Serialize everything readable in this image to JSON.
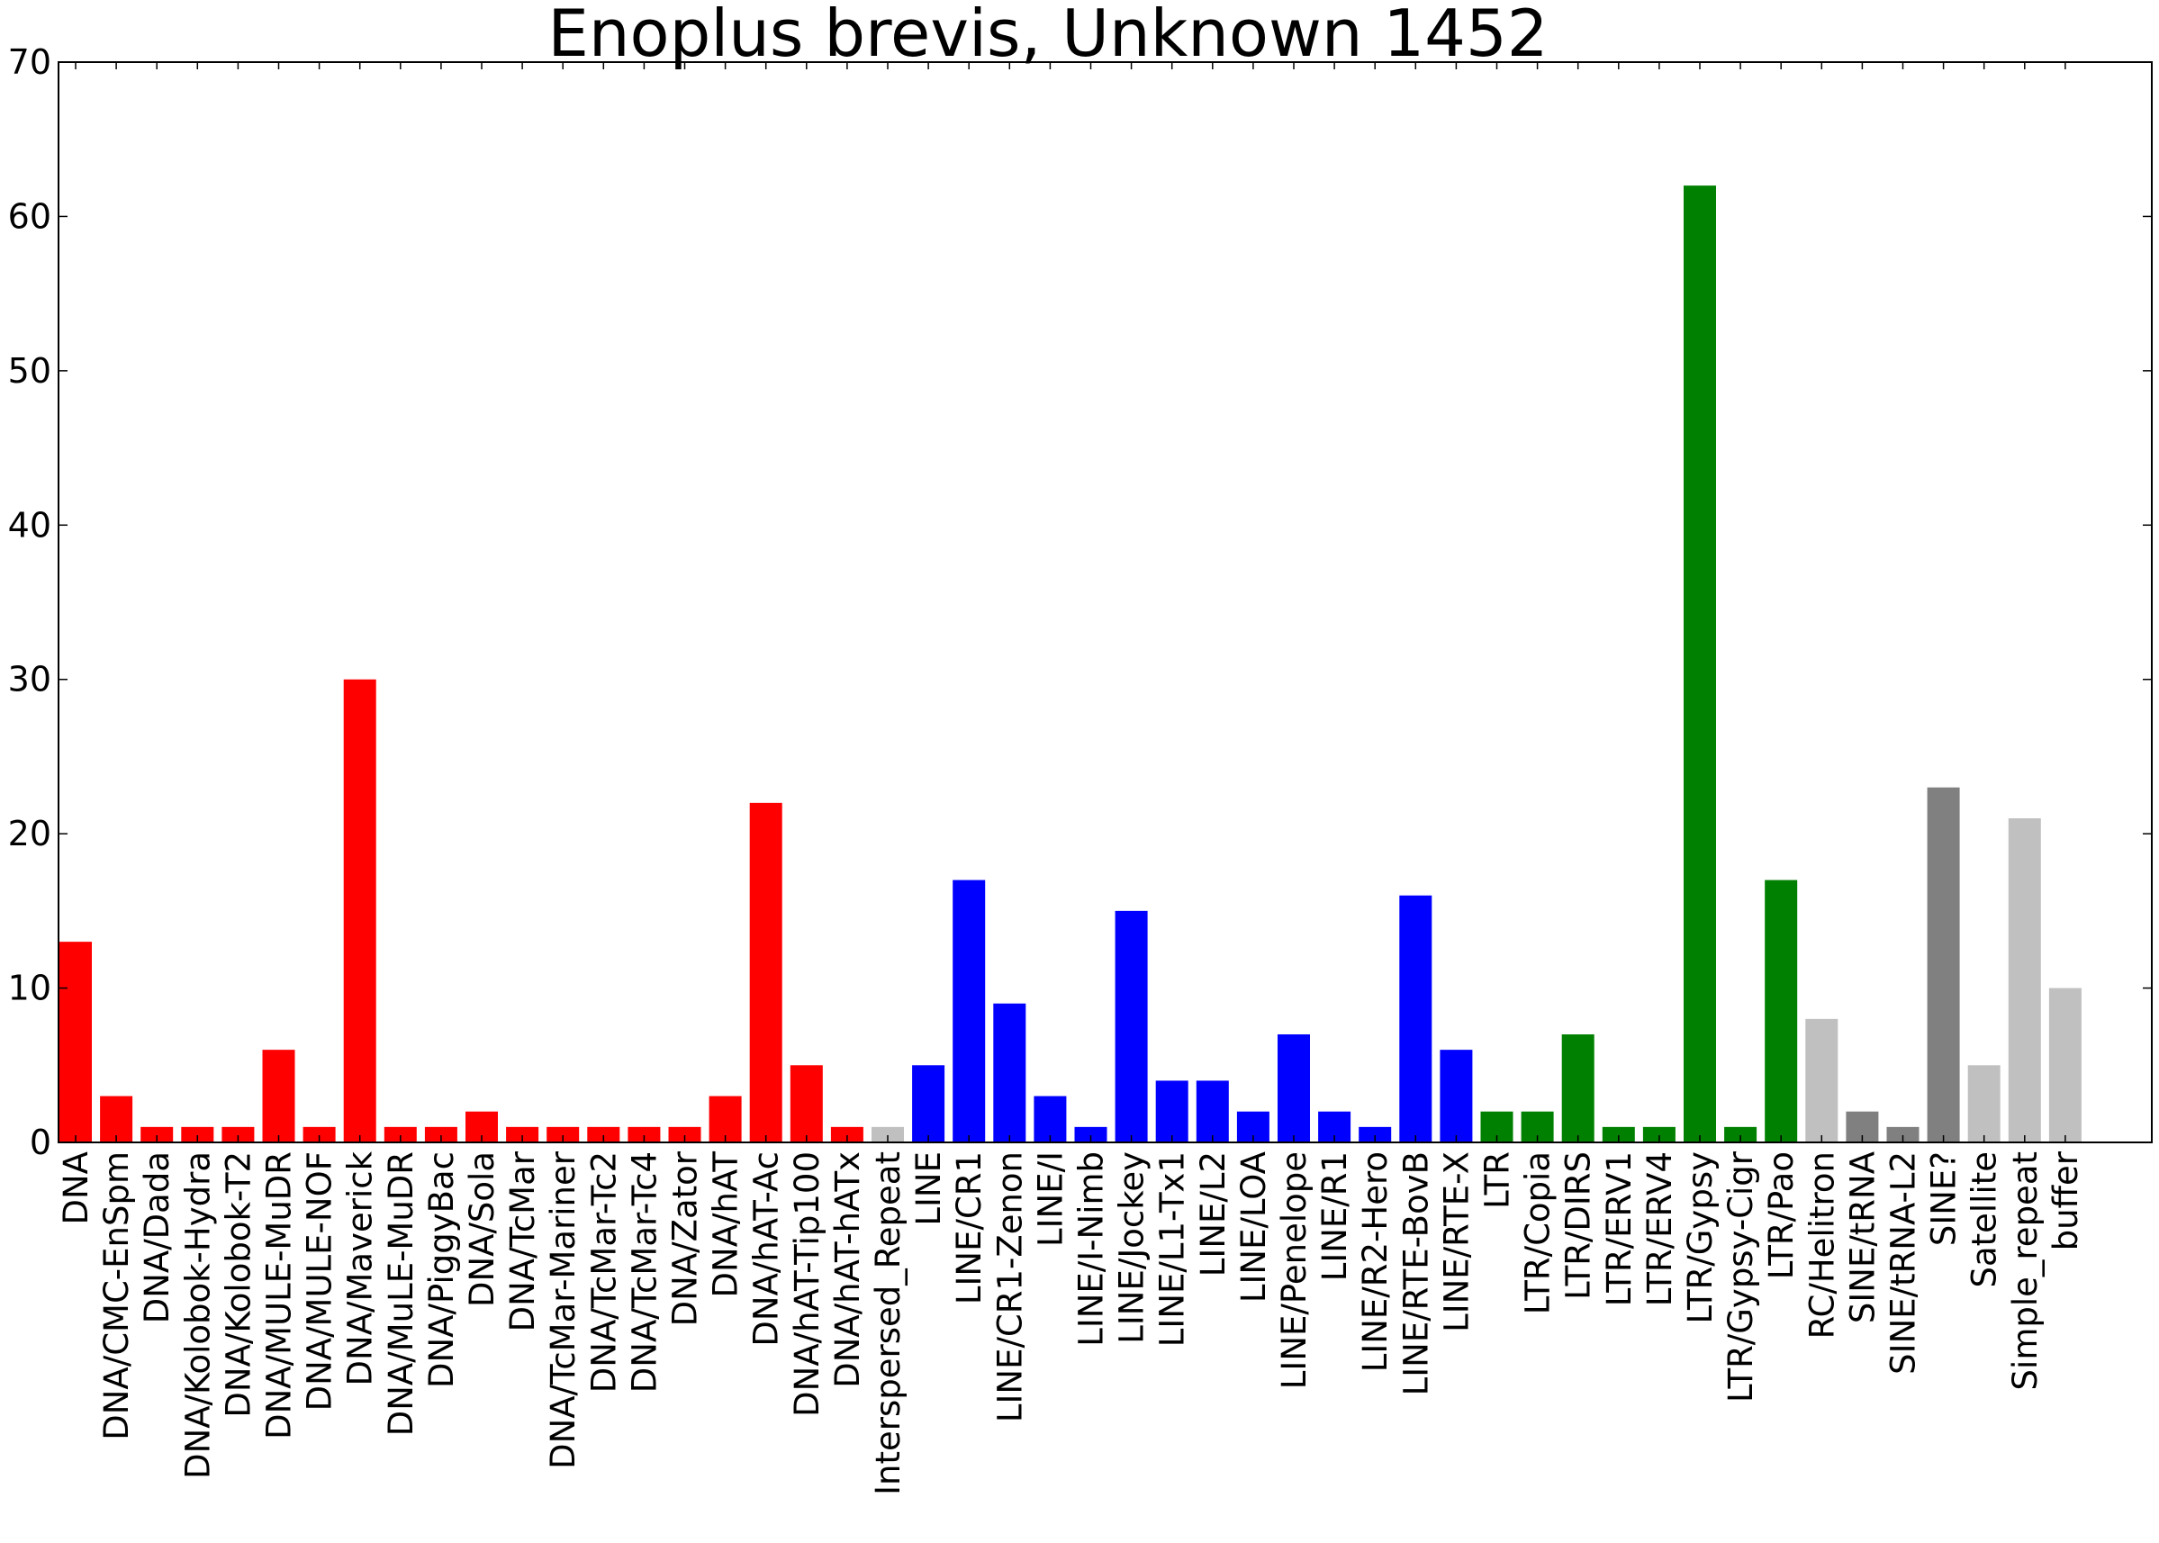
{
  "chart_data": {
    "type": "bar",
    "title": "Enoplus brevis, Unknown 1452",
    "xlabel": "",
    "ylabel": "",
    "ylim": [
      0,
      70
    ],
    "yticks": [
      0,
      10,
      20,
      30,
      40,
      50,
      60,
      70
    ],
    "grid": false,
    "legend": "none",
    "categories": [
      "DNA",
      "DNA/CMC-EnSpm",
      "DNA/Dada",
      "DNA/Kolobok-Hydra",
      "DNA/Kolobok-T2",
      "DNA/MULE-MuDR",
      "DNA/MULE-NOF",
      "DNA/Maverick",
      "DNA/MuLE-MuDR",
      "DNA/PiggyBac",
      "DNA/Sola",
      "DNA/TcMar",
      "DNA/TcMar-Mariner",
      "DNA/TcMar-Tc2",
      "DNA/TcMar-Tc4",
      "DNA/Zator",
      "DNA/hAT",
      "DNA/hAT-Ac",
      "DNA/hAT-Tip100",
      "DNA/hAT-hATx",
      "Interspersed_Repeat",
      "LINE",
      "LINE/CR1",
      "LINE/CR1-Zenon",
      "LINE/I",
      "LINE/I-Nimb",
      "LINE/Jockey",
      "LINE/L1-Tx1",
      "LINE/L2",
      "LINE/LOA",
      "LINE/Penelope",
      "LINE/R1",
      "LINE/R2-Hero",
      "LINE/RTE-BovB",
      "LINE/RTE-X",
      "LTR",
      "LTR/Copia",
      "LTR/DIRS",
      "LTR/ERV1",
      "LTR/ERV4",
      "LTR/Gypsy",
      "LTR/Gypsy-Cigr",
      "LTR/Pao",
      "RC/Helitron",
      "SINE/tRNA",
      "SINE/tRNA-L2",
      "SINE?",
      "Satellite",
      "Simple_repeat",
      "buffer"
    ],
    "values": [
      13,
      3,
      1,
      1,
      1,
      6,
      1,
      30,
      1,
      1,
      2,
      1,
      1,
      1,
      1,
      1,
      3,
      22,
      5,
      1,
      1,
      5,
      17,
      9,
      3,
      1,
      15,
      4,
      4,
      2,
      7,
      2,
      1,
      16,
      6,
      2,
      2,
      7,
      1,
      1,
      62,
      1,
      17,
      8,
      2,
      1,
      23,
      5,
      21,
      10
    ],
    "bar_colors": [
      "#ff0000",
      "#ff0000",
      "#ff0000",
      "#ff0000",
      "#ff0000",
      "#ff0000",
      "#ff0000",
      "#ff0000",
      "#ff0000",
      "#ff0000",
      "#ff0000",
      "#ff0000",
      "#ff0000",
      "#ff0000",
      "#ff0000",
      "#ff0000",
      "#ff0000",
      "#ff0000",
      "#ff0000",
      "#ff0000",
      "#c0c0c0",
      "#0000ff",
      "#0000ff",
      "#0000ff",
      "#0000ff",
      "#0000ff",
      "#0000ff",
      "#0000ff",
      "#0000ff",
      "#0000ff",
      "#0000ff",
      "#0000ff",
      "#0000ff",
      "#0000ff",
      "#0000ff",
      "#008000",
      "#008000",
      "#008000",
      "#008000",
      "#008000",
      "#008000",
      "#008000",
      "#008000",
      "#c0c0c0",
      "#808080",
      "#808080",
      "#808080",
      "#c0c0c0",
      "#c0c0c0",
      "#c0c0c0"
    ]
  }
}
